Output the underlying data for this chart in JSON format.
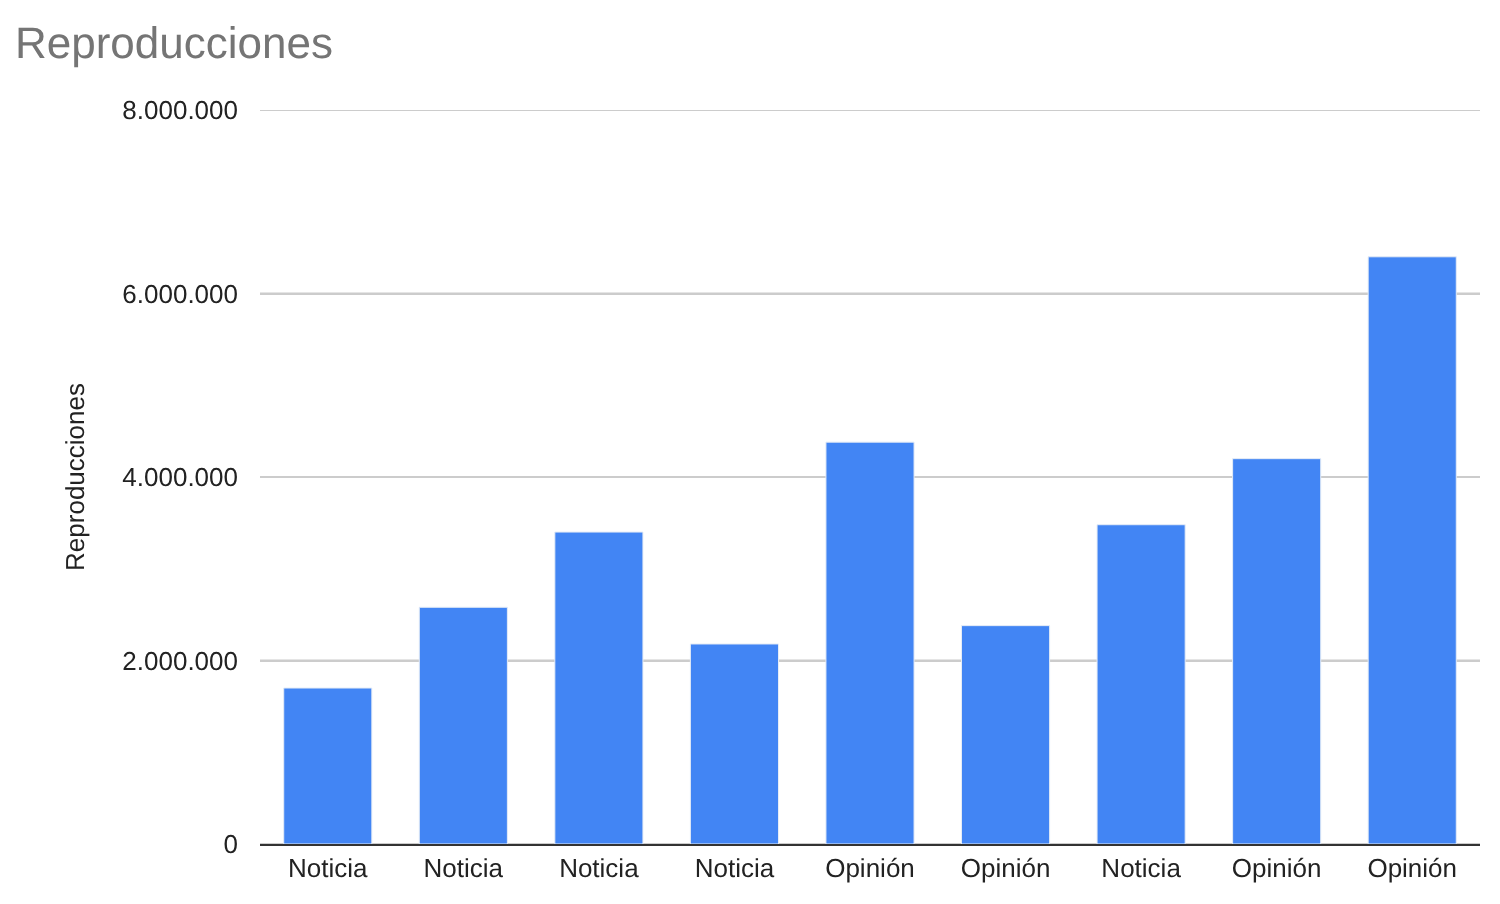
{
  "chart_data": {
    "type": "bar",
    "title": "Reproducciones",
    "ylabel": "Reproducciones",
    "categories": [
      "Noticia",
      "Noticia",
      "Noticia",
      "Noticia",
      "Opinión",
      "Opinión",
      "Noticia",
      "Opinión",
      "Opinión"
    ],
    "values": [
      1700000,
      2580000,
      3400000,
      2180000,
      4380000,
      2380000,
      3480000,
      4200000,
      6400000
    ],
    "color": "#4285f4",
    "ylim": [
      0,
      8000000
    ],
    "yticks": [
      {
        "value": 0,
        "label": "0"
      },
      {
        "value": 2000000,
        "label": "2.000.000"
      },
      {
        "value": 4000000,
        "label": "4.000.000"
      },
      {
        "value": 6000000,
        "label": "6.000.000"
      },
      {
        "value": 8000000,
        "label": "8.000.000"
      }
    ],
    "grid": "y"
  }
}
